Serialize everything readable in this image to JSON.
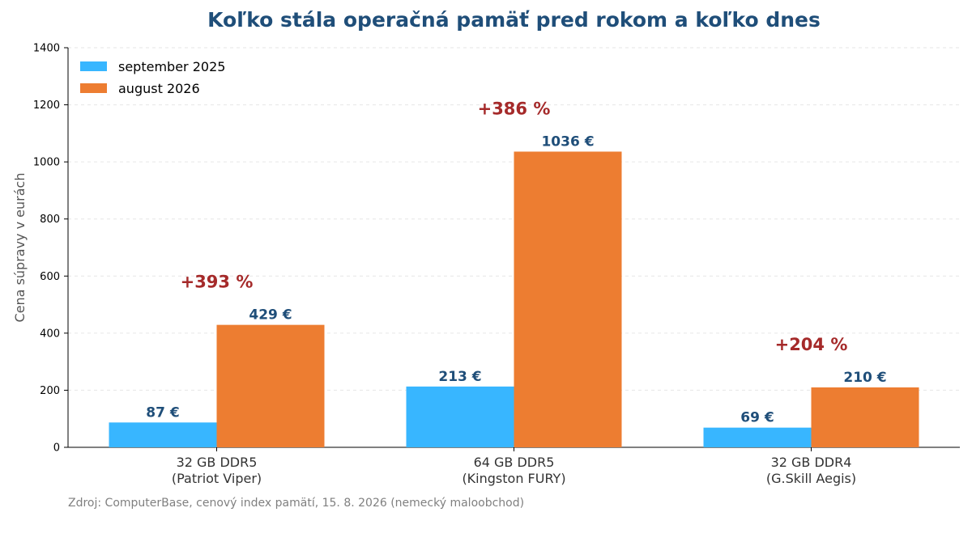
{
  "chart_data": {
    "type": "bar",
    "title": "Koľko stála operačná pamäť pred rokom a koľko dnes",
    "xlabel": "",
    "ylabel": "Cena súpravy v eurách",
    "ylim": [
      0,
      1400
    ],
    "yticks": [
      0,
      200,
      400,
      600,
      800,
      1000,
      1200,
      1400
    ],
    "grid": true,
    "legend_position": "top-left",
    "categories": [
      [
        "32 GB DDR5",
        "(Patriot Viper)"
      ],
      [
        "64 GB DDR5",
        "(Kingston FURY)"
      ],
      [
        "32 GB DDR4",
        "(G.Skill Aegis)"
      ]
    ],
    "series": [
      {
        "name": "september 2025",
        "color": "#38b6ff",
        "values": [
          87,
          213,
          69
        ],
        "labels": [
          "87 €",
          "213 €",
          "69 €"
        ]
      },
      {
        "name": "august 2026",
        "color": "#ed7d31",
        "values": [
          429,
          1036,
          210
        ],
        "labels": [
          "429 €",
          "1036 €",
          "210 €"
        ]
      }
    ],
    "annotations": [
      "+393 %",
      "+386 %",
      "+204 %"
    ],
    "annotation_color": "#a52a2a",
    "value_label_color": "#1f4e79"
  },
  "source_note": "Zdroj: ComputerBase, cenový index pamätí, 15. 8. 2026 (nemecký maloobchod)"
}
